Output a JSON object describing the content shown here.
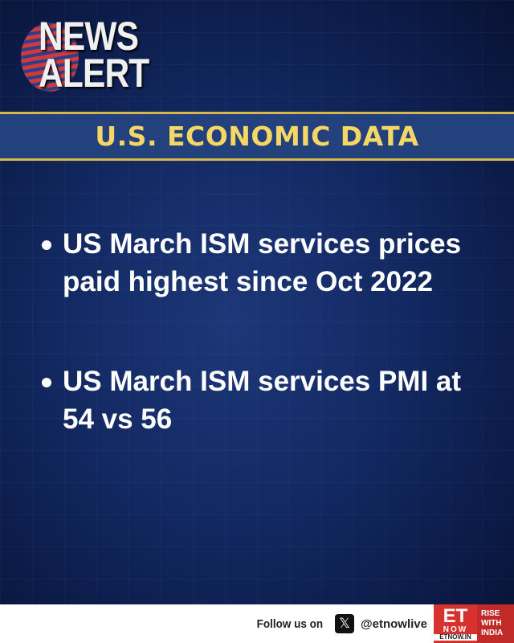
{
  "logo": {
    "line1": "NEWS",
    "line2": "ALERT"
  },
  "banner": {
    "title": "U.S. ECONOMIC DATA"
  },
  "bullets": [
    "US March ISM services prices paid highest since Oct 2022",
    "US March ISM services PMI at 54 vs 56"
  ],
  "footer": {
    "follow_text": "Follow us on",
    "social_icon": "x-icon",
    "handle": "@etnowlive",
    "brand": {
      "et": "ET",
      "now": "NOW",
      "site": "ETNOW.IN",
      "tagline": "RISE WITH INDIA"
    }
  },
  "colors": {
    "banner_text": "#f5d766",
    "banner_bg": "#23417c",
    "accent_line": "#d9b64a",
    "brand_red": "#d8322e"
  }
}
